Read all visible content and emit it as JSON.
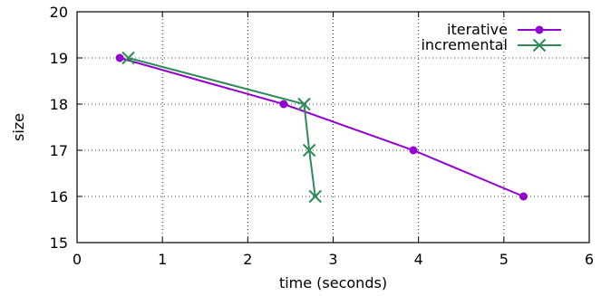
{
  "chart_data": {
    "type": "line",
    "title": "",
    "xlabel": "time (seconds)",
    "ylabel": "size",
    "xlim": [
      0,
      6
    ],
    "ylim": [
      15,
      20
    ],
    "xticks": [
      "0",
      "1",
      "2",
      "3",
      "4",
      "5",
      "6"
    ],
    "yticks": [
      "15",
      "16",
      "17",
      "18",
      "19",
      "20"
    ],
    "grid": true,
    "legend_position": "top-right",
    "series": [
      {
        "name": "iterative",
        "color": "#9400d3",
        "marker": "circle",
        "x": [
          0.5,
          2.42,
          3.94,
          5.23
        ],
        "y": [
          19,
          18,
          17,
          16
        ]
      },
      {
        "name": "incremental",
        "color": "#2e8b57",
        "marker": "cross",
        "x": [
          0.6,
          2.66,
          2.72,
          2.79
        ],
        "y": [
          19,
          18,
          17,
          16
        ]
      }
    ]
  }
}
